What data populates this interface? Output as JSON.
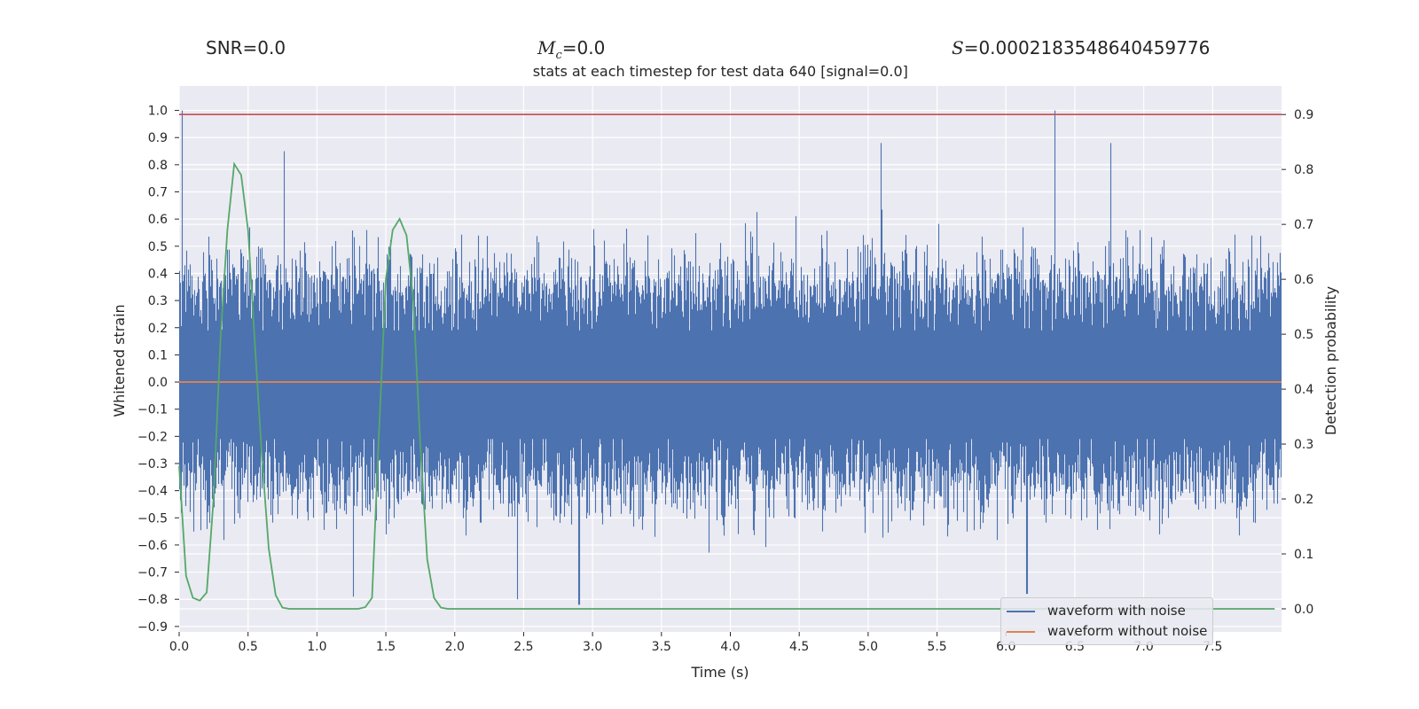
{
  "header": {
    "snr_label": "SNR=0.0",
    "mc_symbol": "M",
    "mc_sub": "c",
    "mc_value": "=0.0",
    "s_symbol": "S",
    "s_value": "=0.0002183548640459776"
  },
  "colors": {
    "plot_bg": "#eaeaf2",
    "grid": "#ffffff",
    "noise": "#4c72b0",
    "clean": "#dd8452",
    "prob": "#55a868",
    "threshold": "#c44e52",
    "text": "#262626"
  },
  "legend": {
    "items": [
      {
        "label": "waveform with noise"
      },
      {
        "label": "waveform without noise"
      }
    ]
  },
  "chart_data": {
    "type": "line",
    "title": "stats at each timestep for test data 640 [signal=0.0]",
    "xlabel": "Time (s)",
    "ylabel": "Whitened strain",
    "y2label": "Detection probability",
    "xlim": [
      0.0,
      8.0
    ],
    "ylim": [
      -0.92,
      1.09
    ],
    "y2lim": [
      -0.042,
      0.952
    ],
    "xticks": [
      0.0,
      0.5,
      1.0,
      1.5,
      2.0,
      2.5,
      3.0,
      3.5,
      4.0,
      4.5,
      5.0,
      5.5,
      6.0,
      6.5,
      7.0,
      7.5
    ],
    "xtick_labels": [
      "0.0",
      "0.5",
      "1.0",
      "1.5",
      "2.0",
      "2.5",
      "3.0",
      "3.5",
      "4.0",
      "4.5",
      "5.0",
      "5.5",
      "6.0",
      "6.5",
      "7.0",
      "7.5"
    ],
    "yticks": [
      1.0,
      0.9,
      0.8,
      0.7,
      0.6,
      0.5,
      0.4,
      0.3,
      0.2,
      0.1,
      0.0,
      -0.1,
      -0.2,
      -0.3,
      -0.4,
      -0.5,
      -0.6,
      -0.7,
      -0.8,
      -0.9
    ],
    "ytick_labels": [
      "1.0",
      "0.9",
      "0.8",
      "0.7",
      "0.6",
      "0.5",
      "0.4",
      "0.3",
      "0.2",
      "0.1",
      "0.0",
      "−0.1",
      "−0.2",
      "−0.3",
      "−0.4",
      "−0.5",
      "−0.6",
      "−0.7",
      "−0.8",
      "−0.9"
    ],
    "y2ticks": [
      0.9,
      0.8,
      0.7,
      0.6,
      0.5,
      0.4,
      0.3,
      0.2,
      0.1,
      0.0
    ],
    "y2tick_labels": [
      "0.9",
      "0.8",
      "0.7",
      "0.6",
      "0.5",
      "0.4",
      "0.3",
      "0.2",
      "0.1",
      "0.0"
    ],
    "series": [
      {
        "name": "waveform with noise",
        "kind": "noise_envelope",
        "samples": 8000,
        "duration": 8.0,
        "noise_sigma": 0.2,
        "peaks": [
          {
            "t": 0.02,
            "v": 1.0
          },
          {
            "t": 0.76,
            "v": 0.85
          },
          {
            "t": 5.09,
            "v": 0.88
          },
          {
            "t": 6.35,
            "v": 1.0
          },
          {
            "t": 6.76,
            "v": 0.88
          },
          {
            "t": 2.9,
            "v": -0.82
          },
          {
            "t": 1.26,
            "v": -0.79
          },
          {
            "t": 6.15,
            "v": -0.78
          },
          {
            "t": 2.45,
            "v": -0.8
          }
        ]
      },
      {
        "name": "waveform without noise",
        "kind": "flat",
        "value": 0.0
      },
      {
        "name": "detection probability",
        "axis": "y2",
        "x": [
          0.0,
          0.05,
          0.1,
          0.15,
          0.2,
          0.25,
          0.3,
          0.35,
          0.4,
          0.45,
          0.5,
          0.55,
          0.6,
          0.65,
          0.7,
          0.75,
          0.8,
          0.9,
          1.0,
          1.1,
          1.2,
          1.3,
          1.35,
          1.4,
          1.45,
          1.5,
          1.55,
          1.6,
          1.65,
          1.7,
          1.75,
          1.8,
          1.85,
          1.9,
          1.95,
          2.0,
          3.0,
          4.0,
          5.0,
          6.0,
          7.0,
          7.95
        ],
        "values": [
          0.26,
          0.06,
          0.02,
          0.015,
          0.03,
          0.2,
          0.49,
          0.69,
          0.81,
          0.79,
          0.69,
          0.48,
          0.28,
          0.11,
          0.025,
          0.002,
          0.0,
          0.0,
          0.0,
          0.0,
          0.0,
          0.0,
          0.003,
          0.02,
          0.32,
          0.6,
          0.69,
          0.71,
          0.68,
          0.56,
          0.3,
          0.09,
          0.02,
          0.002,
          0.0,
          0.0,
          0.0,
          0.0,
          0.0,
          0.0,
          0.0,
          0.0
        ]
      },
      {
        "name": "threshold",
        "axis": "y2",
        "kind": "hline",
        "value": 0.9
      }
    ],
    "legend_position": "lower-right"
  }
}
